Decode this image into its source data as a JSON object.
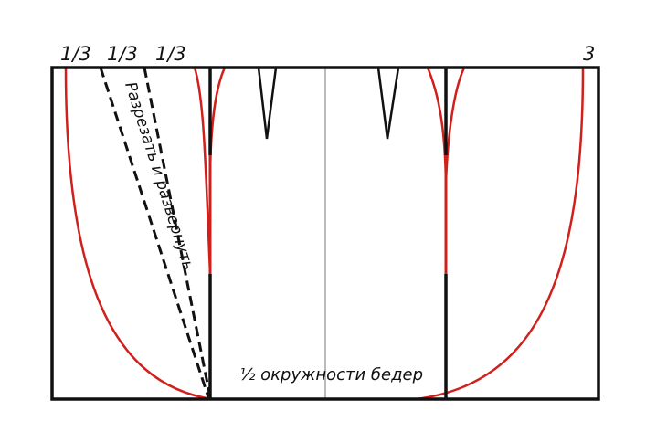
{
  "diagram": {
    "labels": {
      "third_1": "1/3",
      "third_2": "1/3",
      "third_3": "1/3",
      "right_mark": "3",
      "cut_instruction": "Разрезать и развернуть",
      "hip_caption": "½ окружности бедер"
    },
    "colors": {
      "outline": "#111111",
      "curve": "#d0201c",
      "center_line": "#777777",
      "background": "#ffffff"
    }
  }
}
